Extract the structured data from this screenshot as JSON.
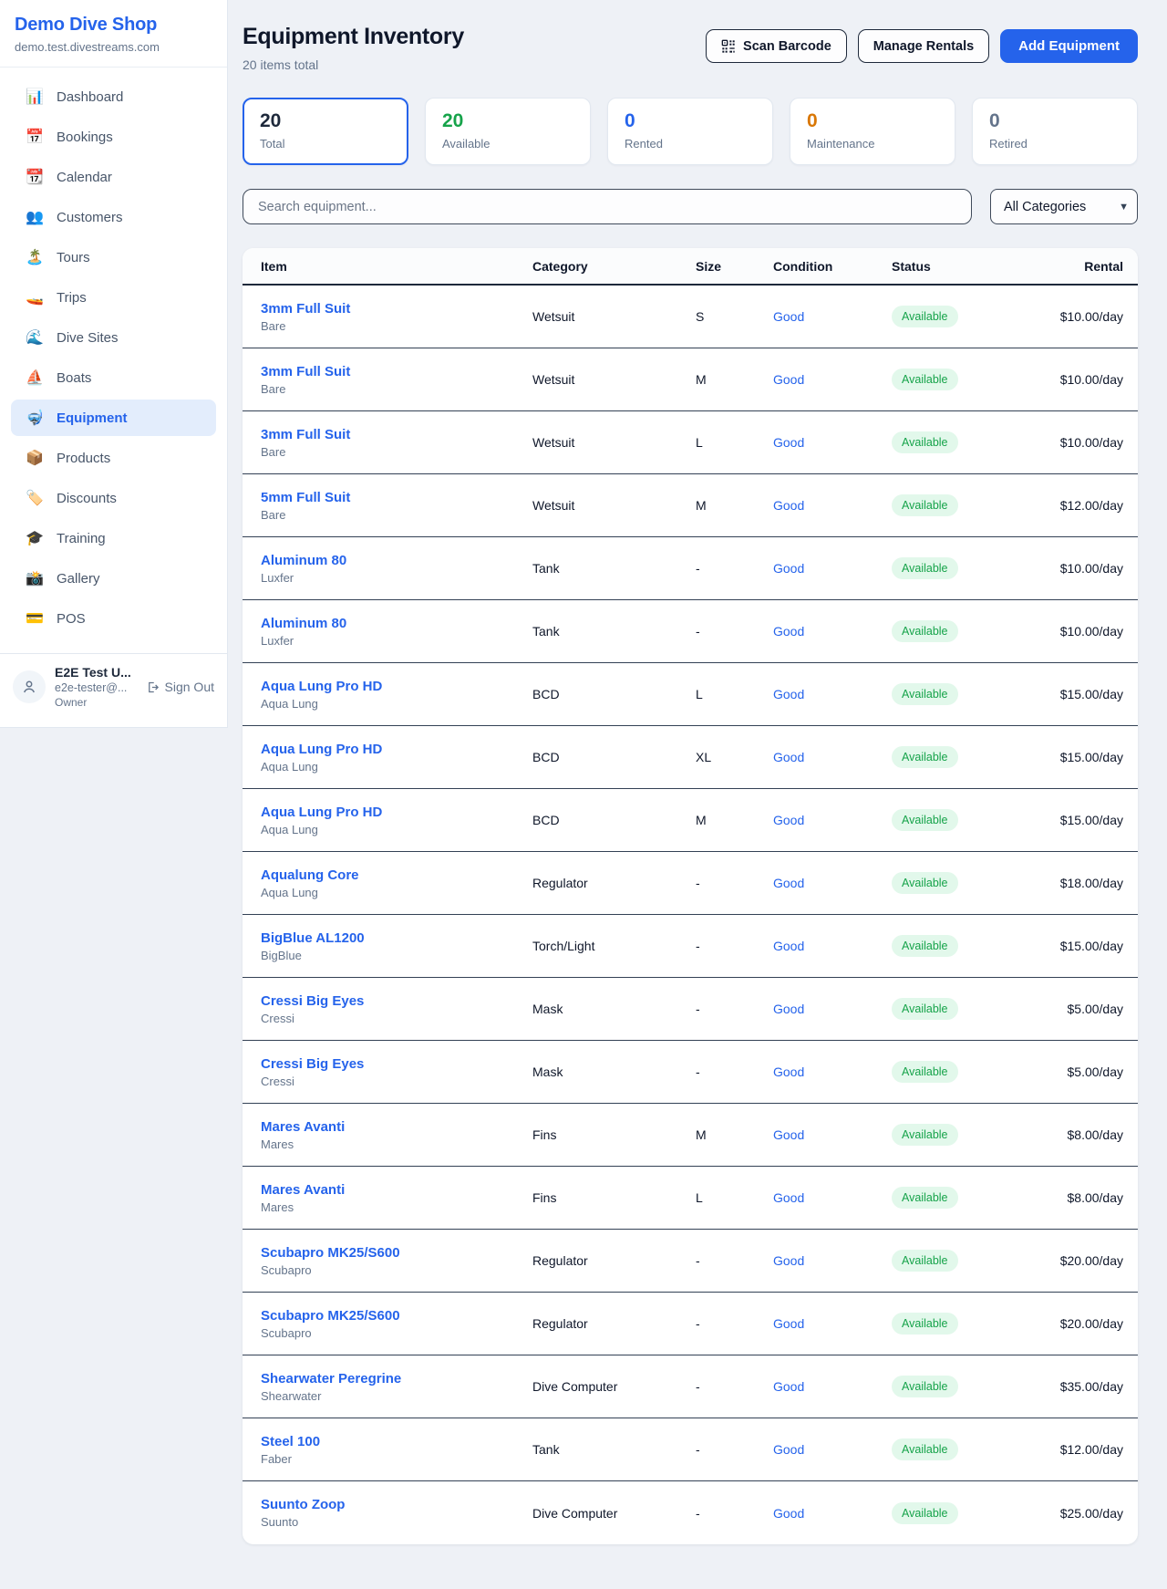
{
  "sidebar": {
    "brand": "Demo Dive Shop",
    "domain": "demo.test.divestreams.com",
    "items": [
      {
        "icon": "📊",
        "label": "Dashboard",
        "active": false
      },
      {
        "icon": "📅",
        "label": "Bookings",
        "active": false
      },
      {
        "icon": "📆",
        "label": "Calendar",
        "active": false
      },
      {
        "icon": "👥",
        "label": "Customers",
        "active": false
      },
      {
        "icon": "🏝️",
        "label": "Tours",
        "active": false
      },
      {
        "icon": "🚤",
        "label": "Trips",
        "active": false
      },
      {
        "icon": "🌊",
        "label": "Dive Sites",
        "active": false
      },
      {
        "icon": "⛵",
        "label": "Boats",
        "active": false
      },
      {
        "icon": "🤿",
        "label": "Equipment",
        "active": true
      },
      {
        "icon": "📦",
        "label": "Products",
        "active": false
      },
      {
        "icon": "🏷️",
        "label": "Discounts",
        "active": false
      },
      {
        "icon": "🎓",
        "label": "Training",
        "active": false
      },
      {
        "icon": "📸",
        "label": "Gallery",
        "active": false
      },
      {
        "icon": "💳",
        "label": "POS",
        "active": false
      }
    ],
    "user": {
      "name": "E2E Test U...",
      "email": "e2e-tester@...",
      "role": "Owner",
      "sign_out": "Sign Out"
    }
  },
  "header": {
    "title": "Equipment Inventory",
    "subtitle": "20 items total",
    "scan_barcode_label": "Scan Barcode",
    "manage_rentals_label": "Manage Rentals",
    "add_equipment_label": "Add Equipment"
  },
  "colors": {
    "accent_blue": "#2563eb",
    "green": "#16a34a",
    "orange": "#d97706",
    "gray": "#64748b",
    "dark": "#1e293b",
    "status_pill_bg": "#e2f8eb"
  },
  "stats": [
    {
      "value": "20",
      "label": "Total",
      "color": "#1e293b",
      "active": true
    },
    {
      "value": "20",
      "label": "Available",
      "color": "#16a34a",
      "active": false
    },
    {
      "value": "0",
      "label": "Rented",
      "color": "#2563eb",
      "active": false
    },
    {
      "value": "0",
      "label": "Maintenance",
      "color": "#d97706",
      "active": false
    },
    {
      "value": "0",
      "label": "Retired",
      "color": "#64748b",
      "active": false
    }
  ],
  "filters": {
    "search_placeholder": "Search equipment...",
    "category_selected": "All Categories"
  },
  "table": {
    "columns": [
      "Item",
      "Category",
      "Size",
      "Condition",
      "Status",
      "Rental"
    ],
    "rows": [
      {
        "name": "3mm Full Suit",
        "brand": "Bare",
        "category": "Wetsuit",
        "size": "S",
        "condition": "Good",
        "status": "Available",
        "rental": "$10.00/day"
      },
      {
        "name": "3mm Full Suit",
        "brand": "Bare",
        "category": "Wetsuit",
        "size": "M",
        "condition": "Good",
        "status": "Available",
        "rental": "$10.00/day"
      },
      {
        "name": "3mm Full Suit",
        "brand": "Bare",
        "category": "Wetsuit",
        "size": "L",
        "condition": "Good",
        "status": "Available",
        "rental": "$10.00/day"
      },
      {
        "name": "5mm Full Suit",
        "brand": "Bare",
        "category": "Wetsuit",
        "size": "M",
        "condition": "Good",
        "status": "Available",
        "rental": "$12.00/day"
      },
      {
        "name": "Aluminum 80",
        "brand": "Luxfer",
        "category": "Tank",
        "size": "-",
        "condition": "Good",
        "status": "Available",
        "rental": "$10.00/day"
      },
      {
        "name": "Aluminum 80",
        "brand": "Luxfer",
        "category": "Tank",
        "size": "-",
        "condition": "Good",
        "status": "Available",
        "rental": "$10.00/day"
      },
      {
        "name": "Aqua Lung Pro HD",
        "brand": "Aqua Lung",
        "category": "BCD",
        "size": "L",
        "condition": "Good",
        "status": "Available",
        "rental": "$15.00/day"
      },
      {
        "name": "Aqua Lung Pro HD",
        "brand": "Aqua Lung",
        "category": "BCD",
        "size": "XL",
        "condition": "Good",
        "status": "Available",
        "rental": "$15.00/day"
      },
      {
        "name": "Aqua Lung Pro HD",
        "brand": "Aqua Lung",
        "category": "BCD",
        "size": "M",
        "condition": "Good",
        "status": "Available",
        "rental": "$15.00/day"
      },
      {
        "name": "Aqualung Core",
        "brand": "Aqua Lung",
        "category": "Regulator",
        "size": "-",
        "condition": "Good",
        "status": "Available",
        "rental": "$18.00/day"
      },
      {
        "name": "BigBlue AL1200",
        "brand": "BigBlue",
        "category": "Torch/Light",
        "size": "-",
        "condition": "Good",
        "status": "Available",
        "rental": "$15.00/day"
      },
      {
        "name": "Cressi Big Eyes",
        "brand": "Cressi",
        "category": "Mask",
        "size": "-",
        "condition": "Good",
        "status": "Available",
        "rental": "$5.00/day"
      },
      {
        "name": "Cressi Big Eyes",
        "brand": "Cressi",
        "category": "Mask",
        "size": "-",
        "condition": "Good",
        "status": "Available",
        "rental": "$5.00/day"
      },
      {
        "name": "Mares Avanti",
        "brand": "Mares",
        "category": "Fins",
        "size": "M",
        "condition": "Good",
        "status": "Available",
        "rental": "$8.00/day"
      },
      {
        "name": "Mares Avanti",
        "brand": "Mares",
        "category": "Fins",
        "size": "L",
        "condition": "Good",
        "status": "Available",
        "rental": "$8.00/day"
      },
      {
        "name": "Scubapro MK25/S600",
        "brand": "Scubapro",
        "category": "Regulator",
        "size": "-",
        "condition": "Good",
        "status": "Available",
        "rental": "$20.00/day"
      },
      {
        "name": "Scubapro MK25/S600",
        "brand": "Scubapro",
        "category": "Regulator",
        "size": "-",
        "condition": "Good",
        "status": "Available",
        "rental": "$20.00/day"
      },
      {
        "name": "Shearwater Peregrine",
        "brand": "Shearwater",
        "category": "Dive Computer",
        "size": "-",
        "condition": "Good",
        "status": "Available",
        "rental": "$35.00/day"
      },
      {
        "name": "Steel 100",
        "brand": "Faber",
        "category": "Tank",
        "size": "-",
        "condition": "Good",
        "status": "Available",
        "rental": "$12.00/day"
      },
      {
        "name": "Suunto Zoop",
        "brand": "Suunto",
        "category": "Dive Computer",
        "size": "-",
        "condition": "Good",
        "status": "Available",
        "rental": "$25.00/day"
      }
    ]
  }
}
